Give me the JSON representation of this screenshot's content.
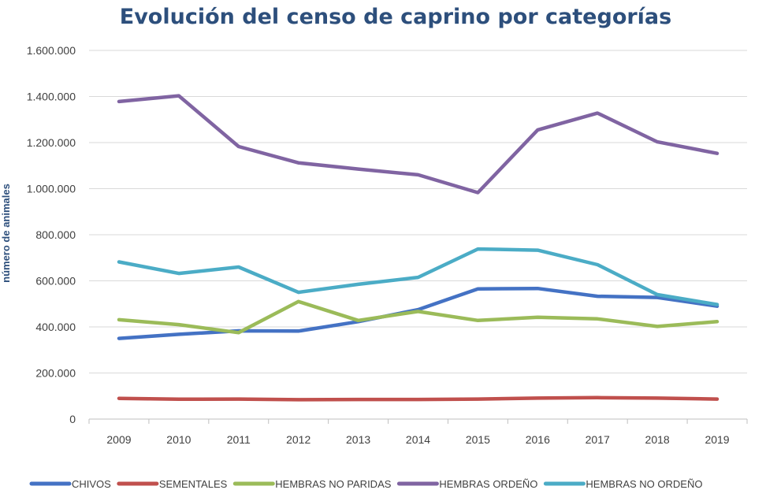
{
  "chart_data": {
    "type": "line",
    "title": "Evolución del censo de caprino por categorías",
    "xlabel": "",
    "ylabel": "número de animales",
    "categories": [
      "2009",
      "2010",
      "2011",
      "2012",
      "2013",
      "2014",
      "2015",
      "2016",
      "2017",
      "2018",
      "2019"
    ],
    "ylim": [
      0,
      1600000
    ],
    "yticks": [
      0,
      200000,
      400000,
      600000,
      800000,
      1000000,
      1200000,
      1400000,
      1600000
    ],
    "ytick_labels": [
      "0",
      "200.000",
      "400.000",
      "600.000",
      "800.000",
      "1.000.000",
      "1.200.000",
      "1.400.000",
      "1.600.000"
    ],
    "grid": true,
    "legend_position": "bottom",
    "series": [
      {
        "name": "CHIVOS",
        "color": "#4472c4",
        "values": [
          350000,
          368000,
          383000,
          382000,
          423000,
          475000,
          565000,
          567000,
          533000,
          528000,
          490000
        ]
      },
      {
        "name": "SEMENTALES",
        "color": "#c0504d",
        "values": [
          90000,
          86000,
          87000,
          84000,
          85000,
          85000,
          87000,
          91000,
          93000,
          91000,
          87000
        ]
      },
      {
        "name": "HEMBRAS NO PARIDAS",
        "color": "#9bbb59",
        "values": [
          431000,
          410000,
          375000,
          510000,
          428000,
          467000,
          428000,
          442000,
          435000,
          402000,
          423000
        ]
      },
      {
        "name": "HEMBRAS ORDEÑO",
        "color": "#8064a2",
        "values": [
          1378000,
          1403000,
          1183000,
          1112000,
          1085000,
          1060000,
          983000,
          1255000,
          1328000,
          1203000,
          1153000
        ]
      },
      {
        "name": "HEMBRAS NO ORDEÑO",
        "color": "#4bacc6",
        "values": [
          682000,
          632000,
          660000,
          550000,
          585000,
          615000,
          738000,
          733000,
          670000,
          540000,
          497000
        ]
      }
    ]
  }
}
